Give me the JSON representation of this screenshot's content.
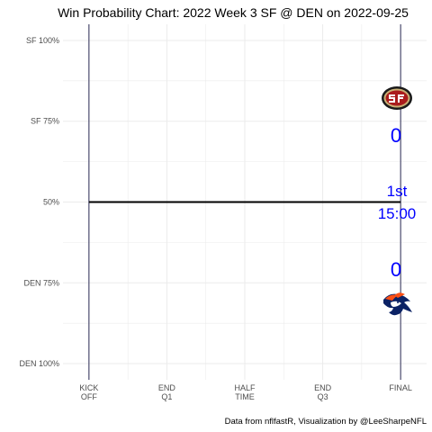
{
  "chart_data": {
    "type": "line",
    "title": "Win Probability Chart: 2022 Week 3 SF @ DEN on 2022-09-25",
    "caption": "Data from nflfastR, Visualization by @LeeSharpeNFL",
    "x_ticks": [
      {
        "value": 0,
        "lines": [
          "KICK",
          "OFF"
        ]
      },
      {
        "value": 15,
        "lines": [
          "END",
          "Q1"
        ]
      },
      {
        "value": 30,
        "lines": [
          "HALF",
          "TIME"
        ]
      },
      {
        "value": 45,
        "lines": [
          "END",
          "Q3"
        ]
      },
      {
        "value": 60,
        "lines": [
          "FINAL"
        ]
      }
    ],
    "xlim": [
      -5,
      65
    ],
    "y_ticks": [
      {
        "value": 1.0,
        "label": "SF 100%"
      },
      {
        "value": 0.75,
        "label": "SF 75%"
      },
      {
        "value": 0.5,
        "label": "50%"
      },
      {
        "value": 0.25,
        "label": "DEN 75%"
      },
      {
        "value": 0.0,
        "label": "DEN 100%"
      }
    ],
    "ylim": [
      -0.05,
      1.05
    ],
    "grid": true,
    "series": [
      {
        "x": [
          0,
          60
        ],
        "y": [
          0.5,
          0.5
        ],
        "color": "#000000"
      }
    ],
    "vlines": [
      0,
      60
    ],
    "home_team": {
      "abbr": "DEN",
      "score": "0",
      "logo": "broncos-logo-icon"
    },
    "away_team": {
      "abbr": "SF",
      "score": "0",
      "logo": "49ers-logo-icon"
    },
    "game_state": {
      "quarter": "1st",
      "clock": "15:00"
    },
    "colors": {
      "accent": "#0000ff",
      "grid": "#ebebeb",
      "vline": "#2b2b55"
    }
  }
}
